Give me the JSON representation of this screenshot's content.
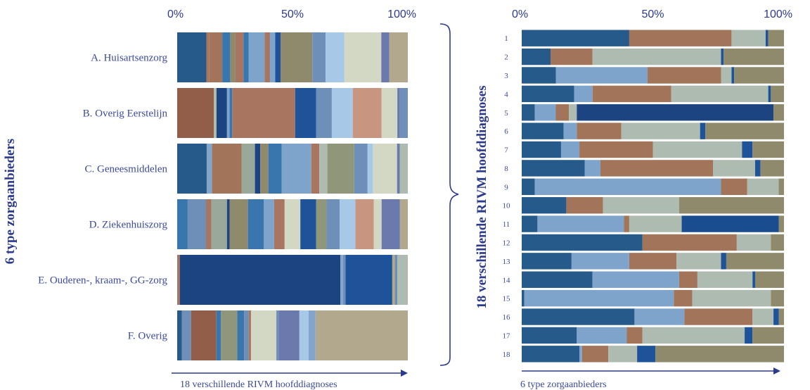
{
  "palette": {
    "A": "#255a8a",
    "B": "#3a76ae",
    "C": "#7fa4cc",
    "D": "#aebbb0",
    "E": "#a2745a",
    "F": "#8f8a6c",
    "G": "#1a4d8f",
    "H": "#b2a88e",
    "I": "#a87660",
    "J": "#9aa89a",
    "K": "#6e8fb8",
    "L": "#a8c8e8",
    "M": "#d3d8c4",
    "N": "#c89580",
    "O": "#6b79ad",
    "P": "#1e5399",
    "Q": "#909679",
    "R": "#1b4480",
    "S": "#925e4a",
    "T": "#82a5cc"
  },
  "chart_data": [
    {
      "type": "bar",
      "orientation": "horizontal-stacked-100",
      "categories": [
        "A. Huisartsenzorg",
        "B. Overig Eerstelijn",
        "C. Geneesmiddelen",
        "D. Ziekenhuiszorg",
        "E. Ouderen-, kraam-, GG-zorg",
        "F. Overig"
      ],
      "xaxis_ticks": [
        "0%",
        "50%",
        "100%"
      ],
      "xlim": [
        0,
        100
      ],
      "ylabel": "6 type zorgaanbieders",
      "arrow_label": "18 verschillende RIVM hoofddiagnoses",
      "segments": [
        [
          {
            "v": 11,
            "c": "A"
          },
          {
            "v": 1,
            "c": "I"
          },
          {
            "v": 5,
            "c": "E"
          },
          {
            "v": 3,
            "c": "B"
          },
          {
            "v": 2,
            "c": "F"
          },
          {
            "v": 3,
            "c": "I"
          },
          {
            "v": 2,
            "c": "B"
          },
          {
            "v": 6,
            "c": "C"
          },
          {
            "v": 2,
            "c": "I"
          },
          {
            "v": 2,
            "c": "C"
          },
          {
            "v": 2,
            "c": "P"
          },
          {
            "v": 12,
            "c": "F"
          },
          {
            "v": 5,
            "c": "K"
          },
          {
            "v": 7,
            "c": "L"
          },
          {
            "v": 14,
            "c": "M"
          },
          {
            "v": 3,
            "c": "O"
          },
          {
            "v": 7,
            "c": "H"
          }
        ],
        [
          {
            "v": 14,
            "c": "S"
          },
          {
            "v": 1,
            "c": "D"
          },
          {
            "v": 4,
            "c": "R"
          },
          {
            "v": 1,
            "c": "C"
          },
          {
            "v": 1,
            "c": "B"
          },
          {
            "v": 24,
            "c": "I"
          },
          {
            "v": 8,
            "c": "P"
          },
          {
            "v": 6,
            "c": "K"
          },
          {
            "v": 8,
            "c": "L"
          },
          {
            "v": 11,
            "c": "N"
          },
          {
            "v": 6,
            "c": "M"
          },
          {
            "v": 1,
            "c": "O"
          },
          {
            "v": 3,
            "c": "K"
          }
        ],
        [
          {
            "v": 11,
            "c": "A"
          },
          {
            "v": 2,
            "c": "T"
          },
          {
            "v": 11,
            "c": "E"
          },
          {
            "v": 5,
            "c": "J"
          },
          {
            "v": 2,
            "c": "R"
          },
          {
            "v": 3,
            "c": "F"
          },
          {
            "v": 5,
            "c": "B"
          },
          {
            "v": 11,
            "c": "C"
          },
          {
            "v": 3,
            "c": "I"
          },
          {
            "v": 3,
            "c": "D"
          },
          {
            "v": 10,
            "c": "Q"
          },
          {
            "v": 5,
            "c": "K"
          },
          {
            "v": 2,
            "c": "L"
          },
          {
            "v": 9,
            "c": "M"
          },
          {
            "v": 1,
            "c": "O"
          },
          {
            "v": 3,
            "c": "D"
          }
        ],
        [
          {
            "v": 4,
            "c": "B"
          },
          {
            "v": 7,
            "c": "K"
          },
          {
            "v": 2,
            "c": "I"
          },
          {
            "v": 6,
            "c": "J"
          },
          {
            "v": 1,
            "c": "R"
          },
          {
            "v": 7,
            "c": "F"
          },
          {
            "v": 6,
            "c": "B"
          },
          {
            "v": 4,
            "c": "C"
          },
          {
            "v": 4,
            "c": "I"
          },
          {
            "v": 6,
            "c": "M"
          },
          {
            "v": 6,
            "c": "P"
          },
          {
            "v": 4,
            "c": "Q"
          },
          {
            "v": 5,
            "c": "K"
          },
          {
            "v": 6,
            "c": "L"
          },
          {
            "v": 7,
            "c": "N"
          },
          {
            "v": 3,
            "c": "M"
          },
          {
            "v": 7,
            "c": "O"
          },
          {
            "v": 3,
            "c": "H"
          }
        ],
        [
          {
            "v": 1,
            "c": "I"
          },
          {
            "v": 62,
            "c": "R"
          },
          {
            "v": 1,
            "c": "T"
          },
          {
            "v": 1,
            "c": "K"
          },
          {
            "v": 18,
            "c": "P"
          },
          {
            "v": 1,
            "c": "H"
          },
          {
            "v": 1,
            "c": "K"
          },
          {
            "v": 4,
            "c": "D"
          }
        ],
        [
          {
            "v": 2,
            "c": "A"
          },
          {
            "v": 4,
            "c": "K"
          },
          {
            "v": 11,
            "c": "S"
          },
          {
            "v": 2,
            "c": "B"
          },
          {
            "v": 7,
            "c": "Q"
          },
          {
            "v": 3,
            "c": "B"
          },
          {
            "v": 2,
            "c": "K"
          },
          {
            "v": 1,
            "c": "I"
          },
          {
            "v": 11,
            "c": "M"
          },
          {
            "v": 1,
            "c": "K"
          },
          {
            "v": 9,
            "c": "O"
          },
          {
            "v": 4,
            "c": "L"
          },
          {
            "v": 3,
            "c": "T"
          },
          {
            "v": 40,
            "c": "H"
          }
        ]
      ]
    },
    {
      "type": "bar",
      "orientation": "horizontal-stacked-100",
      "categories": [
        "1",
        "2",
        "3",
        "4",
        "5",
        "6",
        "7",
        "8",
        "9",
        "10",
        "11",
        "12",
        "13",
        "14",
        "15",
        "16",
        "17",
        "18"
      ],
      "xaxis_ticks": [
        "0%",
        "50%",
        "100%"
      ],
      "xlim": [
        0,
        100
      ],
      "ylabel": "18 verschillende RIVM hoofddiagnoses",
      "arrow_label": "6 type zorgaanbieders",
      "segments": [
        [
          {
            "v": 41,
            "c": "A"
          },
          {
            "v": 39,
            "c": "E"
          },
          {
            "v": 13,
            "c": "D"
          },
          {
            "v": 1,
            "c": "P"
          },
          {
            "v": 6,
            "c": "F"
          }
        ],
        [
          {
            "v": 11,
            "c": "A"
          },
          {
            "v": 16,
            "c": "E"
          },
          {
            "v": 49,
            "c": "D"
          },
          {
            "v": 1,
            "c": "P"
          },
          {
            "v": 23,
            "c": "F"
          }
        ],
        [
          {
            "v": 13,
            "c": "A"
          },
          {
            "v": 35,
            "c": "C"
          },
          {
            "v": 28,
            "c": "E"
          },
          {
            "v": 4,
            "c": "D"
          },
          {
            "v": 1,
            "c": "P"
          },
          {
            "v": 19,
            "c": "F"
          }
        ],
        [
          {
            "v": 20,
            "c": "A"
          },
          {
            "v": 7,
            "c": "C"
          },
          {
            "v": 30,
            "c": "E"
          },
          {
            "v": 37,
            "c": "D"
          },
          {
            "v": 1,
            "c": "P"
          },
          {
            "v": 5,
            "c": "F"
          }
        ],
        [
          {
            "v": 5,
            "c": "A"
          },
          {
            "v": 8,
            "c": "C"
          },
          {
            "v": 5,
            "c": "E"
          },
          {
            "v": 3,
            "c": "D"
          },
          {
            "v": 75,
            "c": "R"
          },
          {
            "v": 4,
            "c": "F"
          }
        ],
        [
          {
            "v": 16,
            "c": "A"
          },
          {
            "v": 5,
            "c": "C"
          },
          {
            "v": 17,
            "c": "E"
          },
          {
            "v": 30,
            "c": "D"
          },
          {
            "v": 2,
            "c": "P"
          },
          {
            "v": 30,
            "c": "F"
          }
        ],
        [
          {
            "v": 15,
            "c": "A"
          },
          {
            "v": 7,
            "c": "C"
          },
          {
            "v": 28,
            "c": "E"
          },
          {
            "v": 34,
            "c": "D"
          },
          {
            "v": 4,
            "c": "P"
          },
          {
            "v": 12,
            "c": "F"
          }
        ],
        [
          {
            "v": 24,
            "c": "A"
          },
          {
            "v": 6,
            "c": "C"
          },
          {
            "v": 43,
            "c": "E"
          },
          {
            "v": 16,
            "c": "D"
          },
          {
            "v": 2,
            "c": "P"
          },
          {
            "v": 9,
            "c": "F"
          }
        ],
        [
          {
            "v": 5,
            "c": "A"
          },
          {
            "v": 71,
            "c": "C"
          },
          {
            "v": 10,
            "c": "E"
          },
          {
            "v": 12,
            "c": "D"
          },
          {
            "v": 2,
            "c": "F"
          }
        ],
        [
          {
            "v": 17,
            "c": "A"
          },
          {
            "v": 14,
            "c": "E"
          },
          {
            "v": 29,
            "c": "D"
          },
          {
            "v": 40,
            "c": "F"
          }
        ],
        [
          {
            "v": 6,
            "c": "A"
          },
          {
            "v": 33,
            "c": "C"
          },
          {
            "v": 2,
            "c": "E"
          },
          {
            "v": 20,
            "c": "D"
          },
          {
            "v": 37,
            "c": "G"
          },
          {
            "v": 2,
            "c": "F"
          }
        ],
        [
          {
            "v": 46,
            "c": "A"
          },
          {
            "v": 36,
            "c": "E"
          },
          {
            "v": 13,
            "c": "D"
          },
          {
            "v": 5,
            "c": "F"
          }
        ],
        [
          {
            "v": 19,
            "c": "A"
          },
          {
            "v": 22,
            "c": "C"
          },
          {
            "v": 18,
            "c": "E"
          },
          {
            "v": 17,
            "c": "D"
          },
          {
            "v": 2,
            "c": "P"
          },
          {
            "v": 22,
            "c": "F"
          }
        ],
        [
          {
            "v": 27,
            "c": "A"
          },
          {
            "v": 33,
            "c": "C"
          },
          {
            "v": 7,
            "c": "E"
          },
          {
            "v": 21,
            "c": "D"
          },
          {
            "v": 1,
            "c": "P"
          },
          {
            "v": 11,
            "c": "F"
          }
        ],
        [
          {
            "v": 1,
            "c": "A"
          },
          {
            "v": 57,
            "c": "C"
          },
          {
            "v": 7,
            "c": "E"
          },
          {
            "v": 30,
            "c": "D"
          },
          {
            "v": 5,
            "c": "F"
          }
        ],
        [
          {
            "v": 43,
            "c": "A"
          },
          {
            "v": 19,
            "c": "C"
          },
          {
            "v": 26,
            "c": "E"
          },
          {
            "v": 8,
            "c": "D"
          },
          {
            "v": 2,
            "c": "P"
          },
          {
            "v": 2,
            "c": "F"
          }
        ],
        [
          {
            "v": 21,
            "c": "A"
          },
          {
            "v": 19,
            "c": "C"
          },
          {
            "v": 6,
            "c": "E"
          },
          {
            "v": 39,
            "c": "D"
          },
          {
            "v": 3,
            "c": "P"
          },
          {
            "v": 12,
            "c": "F"
          }
        ],
        [
          {
            "v": 22,
            "c": "A"
          },
          {
            "v": 1,
            "c": "C"
          },
          {
            "v": 10,
            "c": "E"
          },
          {
            "v": 11,
            "c": "D"
          },
          {
            "v": 7,
            "c": "P"
          },
          {
            "v": 49,
            "c": "F"
          }
        ]
      ]
    }
  ]
}
